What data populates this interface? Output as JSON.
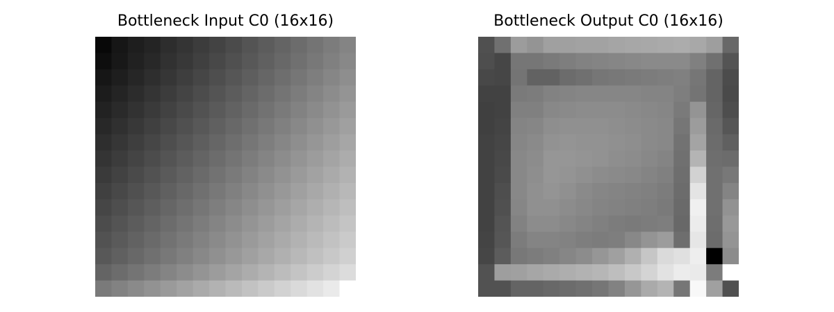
{
  "figure": {
    "titles": [
      "Bottleneck Input C0 (16x16)",
      "Bottleneck Output C0 (16x16)"
    ]
  },
  "chart_data": [
    {
      "type": "heatmap",
      "title": "Bottleneck Input C0 (16x16)",
      "colormap": "gray",
      "rows": 16,
      "cols": 16,
      "vmin": 0,
      "vmax": 255,
      "axes": "off",
      "values": [
        [
          8,
          22,
          30,
          36,
          45,
          52,
          60,
          67,
          75,
          84,
          92,
          100,
          108,
          116,
          124,
          132
        ],
        [
          14,
          24,
          33,
          40,
          49,
          56,
          64,
          72,
          80,
          88,
          96,
          104,
          112,
          120,
          128,
          136
        ],
        [
          22,
          30,
          38,
          46,
          54,
          62,
          70,
          78,
          86,
          94,
          102,
          110,
          118,
          126,
          134,
          142
        ],
        [
          28,
          36,
          44,
          52,
          60,
          68,
          76,
          84,
          92,
          100,
          108,
          116,
          124,
          132,
          140,
          148
        ],
        [
          34,
          42,
          50,
          58,
          66,
          74,
          82,
          90,
          98,
          106,
          114,
          122,
          130,
          138,
          146,
          154
        ],
        [
          40,
          48,
          56,
          64,
          72,
          80,
          88,
          96,
          104,
          112,
          120,
          128,
          136,
          144,
          152,
          160
        ],
        [
          46,
          54,
          62,
          70,
          78,
          86,
          94,
          102,
          110,
          118,
          126,
          134,
          142,
          150,
          158,
          166
        ],
        [
          52,
          60,
          68,
          76,
          84,
          92,
          100,
          108,
          116,
          124,
          132,
          140,
          148,
          156,
          164,
          172
        ],
        [
          58,
          66,
          74,
          82,
          90,
          98,
          106,
          114,
          122,
          130,
          138,
          146,
          154,
          162,
          170,
          178
        ],
        [
          64,
          72,
          80,
          88,
          96,
          104,
          112,
          120,
          128,
          136,
          144,
          152,
          160,
          168,
          176,
          184
        ],
        [
          70,
          78,
          86,
          94,
          102,
          110,
          118,
          126,
          134,
          142,
          150,
          158,
          166,
          174,
          182,
          190
        ],
        [
          76,
          84,
          92,
          100,
          108,
          116,
          124,
          132,
          140,
          148,
          156,
          164,
          172,
          180,
          188,
          196
        ],
        [
          82,
          90,
          98,
          106,
          114,
          122,
          130,
          138,
          146,
          154,
          162,
          170,
          178,
          186,
          194,
          202
        ],
        [
          88,
          96,
          104,
          112,
          120,
          128,
          136,
          144,
          152,
          160,
          168,
          176,
          184,
          192,
          200,
          208
        ],
        [
          100,
          108,
          116,
          124,
          132,
          140,
          148,
          156,
          164,
          172,
          180,
          188,
          196,
          204,
          212,
          220
        ],
        [
          122,
          130,
          138,
          146,
          154,
          162,
          170,
          178,
          186,
          194,
          202,
          210,
          218,
          226,
          234,
          255
        ]
      ]
    },
    {
      "type": "heatmap",
      "title": "Bottleneck Output C0 (16x16)",
      "colormap": "gray",
      "rows": 16,
      "cols": 16,
      "vmin": 0,
      "vmax": 255,
      "axes": "off",
      "values": [
        [
          80,
          112,
          156,
          148,
          160,
          160,
          162,
          162,
          165,
          167,
          168,
          170,
          172,
          168,
          158,
          104
        ],
        [
          78,
          70,
          118,
          118,
          122,
          126,
          130,
          132,
          134,
          136,
          138,
          138,
          138,
          128,
          112,
          84
        ],
        [
          72,
          70,
          116,
          98,
          98,
          108,
          112,
          118,
          120,
          122,
          124,
          126,
          128,
          118,
          100,
          76
        ],
        [
          66,
          66,
          122,
          124,
          130,
          132,
          134,
          134,
          134,
          134,
          132,
          132,
          126,
          116,
          100,
          74
        ],
        [
          64,
          66,
          128,
          128,
          136,
          138,
          140,
          140,
          140,
          138,
          136,
          134,
          122,
          148,
          102,
          78
        ],
        [
          64,
          68,
          132,
          134,
          142,
          144,
          144,
          144,
          142,
          140,
          138,
          136,
          118,
          156,
          106,
          86
        ],
        [
          66,
          70,
          134,
          138,
          146,
          148,
          146,
          146,
          144,
          142,
          138,
          136,
          114,
          164,
          108,
          96
        ],
        [
          66,
          72,
          136,
          140,
          150,
          150,
          148,
          146,
          142,
          140,
          136,
          132,
          112,
          180,
          110,
          108
        ],
        [
          66,
          74,
          136,
          142,
          150,
          148,
          144,
          140,
          138,
          136,
          132,
          128,
          110,
          210,
          112,
          120
        ],
        [
          66,
          78,
          136,
          144,
          148,
          144,
          138,
          134,
          132,
          130,
          128,
          124,
          108,
          228,
          112,
          132
        ],
        [
          66,
          80,
          134,
          144,
          144,
          140,
          136,
          132,
          130,
          128,
          126,
          122,
          106,
          240,
          112,
          146
        ],
        [
          66,
          84,
          130,
          140,
          140,
          136,
          132,
          128,
          124,
          122,
          124,
          126,
          104,
          236,
          110,
          152
        ],
        [
          68,
          86,
          124,
          132,
          132,
          130,
          126,
          124,
          126,
          136,
          148,
          156,
          110,
          230,
          108,
          148
        ],
        [
          70,
          92,
          120,
          124,
          128,
          134,
          140,
          150,
          160,
          176,
          198,
          218,
          224,
          238,
          0,
          140
        ],
        [
          82,
          158,
          160,
          166,
          170,
          174,
          178,
          182,
          190,
          200,
          212,
          226,
          236,
          234,
          124,
          255
        ],
        [
          82,
          82,
          100,
          100,
          104,
          108,
          112,
          118,
          130,
          150,
          170,
          180,
          118,
          248,
          160,
          80
        ]
      ]
    }
  ]
}
